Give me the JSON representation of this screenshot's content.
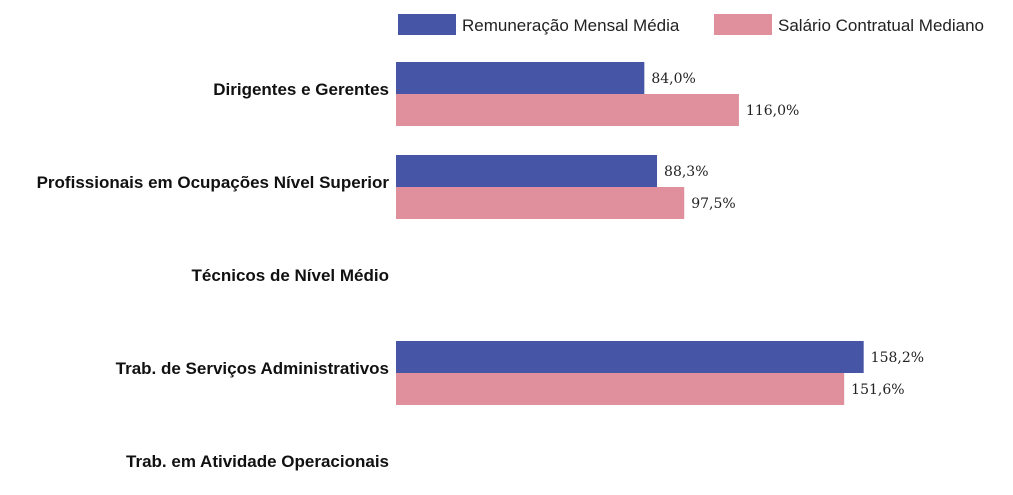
{
  "chart_data": {
    "type": "bar",
    "orientation": "horizontal",
    "categories": [
      "Dirigentes e Gerentes",
      "Profissionais em Ocupações Nível Superior",
      "Técnicos de Nível Médio",
      "Trab. de Serviços Administrativos",
      "Trab. em Atividade Operacionais"
    ],
    "series": [
      {
        "name": "Remuneração Mensal Média",
        "color": "#4655a6",
        "values": [
          84.0,
          88.3,
          null,
          158.2,
          null
        ],
        "labels": [
          "84,0%",
          "88,3%",
          "",
          "158,2%",
          ""
        ]
      },
      {
        "name": "Salário Contratual Mediano",
        "color": "#e0909d",
        "values": [
          116.0,
          97.5,
          null,
          151.6,
          null
        ],
        "labels": [
          "116,0%",
          "97,5%",
          "",
          "151,6%",
          ""
        ]
      }
    ],
    "unit": "%",
    "xlim": [
      0,
      160
    ],
    "grid": false,
    "legend_position": "top-right"
  }
}
